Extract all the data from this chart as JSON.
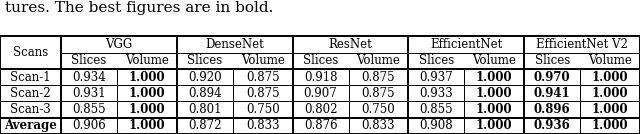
{
  "caption": "tures. The best figures are in bold.",
  "col_groups": [
    "VGG",
    "DenseNet",
    "ResNet",
    "EfficientNet",
    "EfficientNet V2"
  ],
  "sub_cols": [
    "Slices",
    "Volume",
    "Slices",
    "Volume",
    "Slices",
    "Volume",
    "Slices",
    "Volume",
    "Slices",
    "Volume"
  ],
  "row_labels": [
    "Scan-1",
    "Scan-2",
    "Scan-3",
    "Average"
  ],
  "data": [
    [
      "0.934",
      "1.000",
      "0.920",
      "0.875",
      "0.918",
      "0.875",
      "0.937",
      "1.000",
      "0.970",
      "1.000"
    ],
    [
      "0.931",
      "1.000",
      "0.894",
      "0.875",
      "0.907",
      "0.875",
      "0.933",
      "1.000",
      "0.941",
      "1.000"
    ],
    [
      "0.855",
      "1.000",
      "0.801",
      "0.750",
      "0.802",
      "0.750",
      "0.855",
      "1.000",
      "0.896",
      "1.000"
    ],
    [
      "0.906",
      "1.000",
      "0.872",
      "0.833",
      "0.876",
      "0.833",
      "0.908",
      "1.000",
      "0.936",
      "1.000"
    ]
  ],
  "bold_data": [
    [
      false,
      true,
      false,
      false,
      false,
      false,
      false,
      true,
      true,
      true
    ],
    [
      false,
      true,
      false,
      false,
      false,
      false,
      false,
      true,
      true,
      true
    ],
    [
      false,
      true,
      false,
      false,
      false,
      false,
      false,
      true,
      true,
      true
    ],
    [
      false,
      true,
      false,
      false,
      false,
      false,
      false,
      true,
      true,
      true
    ]
  ],
  "caption_fontsize": 11,
  "table_fontsize": 8.5,
  "figwidth": 6.4,
  "figheight": 1.34
}
